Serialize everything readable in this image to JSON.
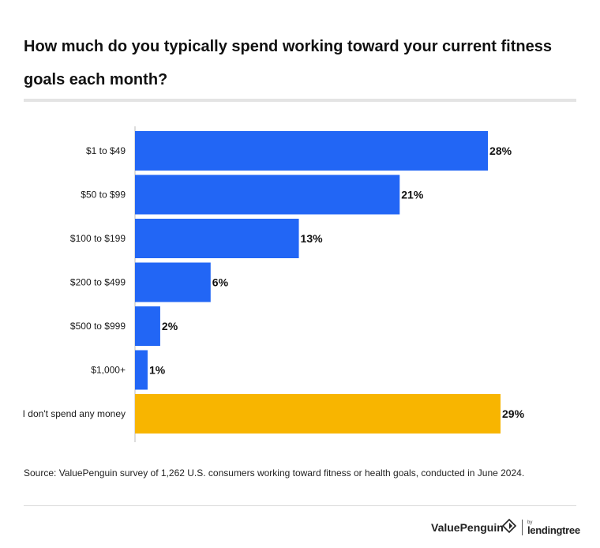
{
  "title": "How much do you typically spend working toward your current fitness goals each month?",
  "source": "Source: ValuePenguin survey of 1,262 U.S. consumers working toward fitness or health goals, conducted in June 2024.",
  "branding": {
    "brand": "ValuePenguin",
    "by": "by",
    "partner": "lendingtree",
    "mark_icon": "penguin-diamond-icon"
  },
  "colors": {
    "bar": "#2266f5",
    "highlight": "#f8b500",
    "axis": "#bbbbbb"
  },
  "chart_data": {
    "type": "bar",
    "orientation": "horizontal",
    "categories": [
      "$1 to $49",
      "$50 to $99",
      "$100 to $199",
      "$200 to $499",
      "$500 to $999",
      "$1,000+",
      "I don't spend any money"
    ],
    "values": [
      28,
      21,
      13,
      6,
      2,
      1,
      29
    ],
    "value_labels": [
      "28%",
      "21%",
      "13%",
      "6%",
      "2%",
      "1%",
      "29%"
    ],
    "highlighted_category": "I don't spend any money",
    "unit": "%",
    "xlim": [
      0,
      29
    ],
    "grid": false,
    "legend": "none"
  }
}
